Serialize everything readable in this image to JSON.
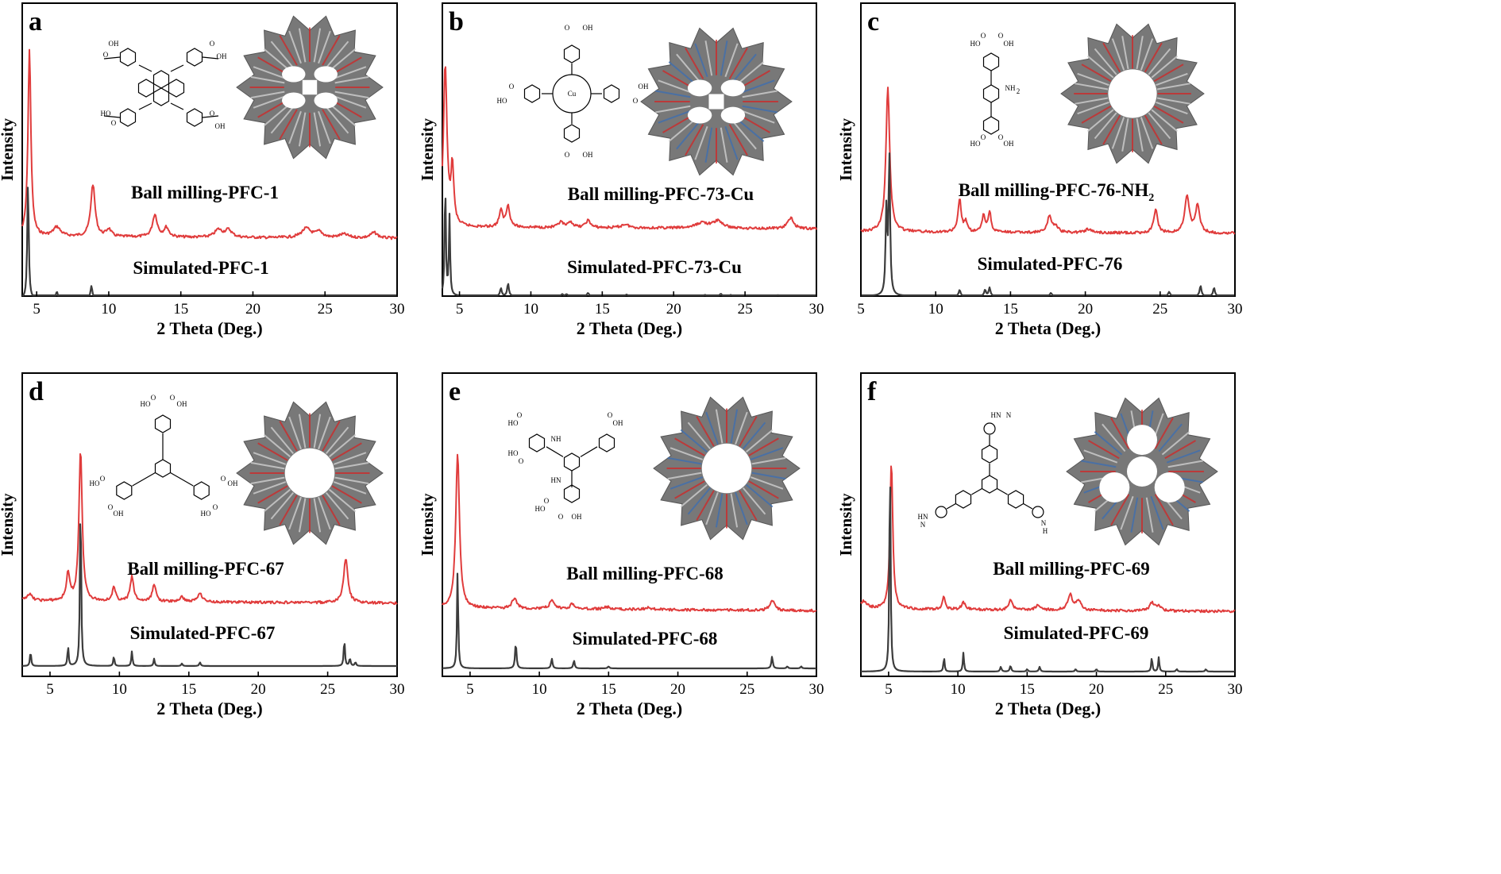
{
  "chart_data": [
    {
      "type": "line",
      "panel_letter": "a",
      "xlabel": "2 Theta (Deg.)",
      "ylabel": "Intensity",
      "xlim": [
        4,
        30
      ],
      "xticks": [
        "5",
        "10",
        "15",
        "20",
        "25",
        "30"
      ],
      "xtick_values": [
        5,
        10,
        15,
        20,
        25,
        30
      ],
      "series": [
        {
          "name": "Ball milling-PFC-1",
          "color": "#e03c3c",
          "baseline": 0.32,
          "peaks": [
            [
              4.5,
              1.0,
              0.12
            ],
            [
              6.4,
              0.05,
              0.3
            ],
            [
              8.9,
              0.28,
              0.18
            ],
            [
              10.0,
              0.04,
              0.2
            ],
            [
              13.2,
              0.12,
              0.2
            ],
            [
              14.0,
              0.05,
              0.2
            ],
            [
              17.6,
              0.04,
              0.3
            ],
            [
              18.3,
              0.04,
              0.3
            ],
            [
              23.7,
              0.05,
              0.4
            ],
            [
              24.6,
              0.03,
              0.3
            ],
            [
              26.3,
              0.02,
              0.4
            ],
            [
              28.4,
              0.03,
              0.3
            ]
          ]
        },
        {
          "name": "Simulated-PFC-1",
          "color": "#3c3c3c",
          "baseline": 0.0,
          "peaks": [
            [
              4.4,
              0.62,
              0.06
            ],
            [
              6.4,
              0.04,
              0.08
            ],
            [
              8.8,
              0.07,
              0.08
            ],
            [
              10.1,
              0.02,
              0.08
            ],
            [
              13.2,
              0.015,
              0.08
            ],
            [
              14.0,
              0.01,
              0.08
            ],
            [
              24.1,
              0.01,
              0.08
            ],
            [
              24.9,
              0.008,
              0.08
            ],
            [
              28.4,
              0.008,
              0.08
            ]
          ]
        }
      ],
      "labels": [
        "Ball milling-PFC-1",
        "Simulated-PFC-1"
      ]
    },
    {
      "type": "line",
      "panel_letter": "b",
      "xlabel": "2 Theta (Deg.)",
      "ylabel": "Intensity",
      "xlim": [
        3.8,
        30
      ],
      "xticks": [
        "5",
        "10",
        "15",
        "20",
        "25",
        "30"
      ],
      "xtick_values": [
        5,
        10,
        15,
        20,
        25,
        30
      ],
      "series": [
        {
          "name": "Ball milling-PFC-73-Cu",
          "color": "#e03c3c",
          "baseline": 0.37,
          "peaks": [
            [
              4.0,
              0.9,
              0.15
            ],
            [
              4.5,
              0.32,
              0.12
            ],
            [
              7.9,
              0.09,
              0.15
            ],
            [
              8.4,
              0.12,
              0.15
            ],
            [
              12.1,
              0.03,
              0.2
            ],
            [
              12.8,
              0.03,
              0.2
            ],
            [
              14.0,
              0.04,
              0.2
            ],
            [
              16.6,
              0.02,
              0.3
            ],
            [
              22.0,
              0.03,
              0.5
            ],
            [
              23.1,
              0.04,
              0.4
            ],
            [
              28.2,
              0.06,
              0.25
            ]
          ]
        },
        {
          "name": "Simulated-PFC-73-Cu",
          "color": "#3c3c3c",
          "baseline": 0.0,
          "peaks": [
            [
              4.0,
              0.72,
              0.05
            ],
            [
              4.3,
              0.5,
              0.05
            ],
            [
              7.9,
              0.05,
              0.07
            ],
            [
              8.4,
              0.08,
              0.07
            ],
            [
              12.2,
              0.012,
              0.08
            ],
            [
              12.5,
              0.012,
              0.08
            ],
            [
              14.0,
              0.02,
              0.08
            ],
            [
              16.7,
              0.01,
              0.08
            ],
            [
              22.2,
              0.008,
              0.08
            ],
            [
              23.3,
              0.015,
              0.08
            ],
            [
              24.0,
              0.008,
              0.08
            ],
            [
              27.3,
              0.006,
              0.08
            ]
          ]
        }
      ],
      "labels": [
        "Ball milling-PFC-73-Cu",
        "Simulated-PFC-73-Cu"
      ]
    },
    {
      "type": "line",
      "panel_letter": "c",
      "xlabel": "2 Theta (Deg.)",
      "ylabel": "Intensity",
      "xlim": [
        5,
        30
      ],
      "xticks": [
        "5",
        "10",
        "15",
        "20",
        "25",
        "30"
      ],
      "xtick_values": [
        5,
        10,
        15,
        20,
        25,
        30
      ],
      "series": [
        {
          "name": "Ball milling-PFC-76-NH2",
          "color": "#e03c3c",
          "baseline": 0.3,
          "peaks": [
            [
              6.8,
              0.87,
              0.15
            ],
            [
              11.6,
              0.2,
              0.12
            ],
            [
              12.0,
              0.06,
              0.12
            ],
            [
              13.2,
              0.1,
              0.12
            ],
            [
              13.6,
              0.12,
              0.12
            ],
            [
              17.6,
              0.1,
              0.15
            ],
            [
              18.0,
              0.04,
              0.2
            ],
            [
              20.2,
              0.02,
              0.3
            ],
            [
              24.7,
              0.14,
              0.15
            ],
            [
              26.8,
              0.22,
              0.18
            ],
            [
              27.5,
              0.16,
              0.18
            ]
          ]
        },
        {
          "name": "Simulated-PFC-76",
          "color": "#3c3c3c",
          "baseline": 0.0,
          "peaks": [
            [
              6.7,
              0.4,
              0.06
            ],
            [
              6.9,
              0.67,
              0.06
            ],
            [
              11.6,
              0.03,
              0.07
            ],
            [
              13.3,
              0.03,
              0.07
            ],
            [
              13.6,
              0.04,
              0.07
            ],
            [
              17.7,
              0.015,
              0.08
            ],
            [
              25.6,
              0.02,
              0.08
            ],
            [
              27.7,
              0.05,
              0.07
            ],
            [
              28.6,
              0.04,
              0.07
            ]
          ]
        }
      ],
      "labels": [
        "Ball milling-PFC-76-NH",
        "2",
        "Simulated-PFC-76"
      ]
    },
    {
      "type": "line",
      "panel_letter": "d",
      "xlabel": "2 Theta (Deg.)",
      "ylabel": "Intensity",
      "xlim": [
        3,
        30
      ],
      "xticks": [
        "5",
        "10",
        "15",
        "20",
        "25",
        "30"
      ],
      "xtick_values": [
        5,
        10,
        15,
        20,
        25,
        30
      ],
      "series": [
        {
          "name": "Ball milling-PFC-67",
          "color": "#e03c3c",
          "baseline": 0.3,
          "peaks": [
            [
              3.5,
              0.03,
              0.25
            ],
            [
              6.3,
              0.12,
              0.15
            ],
            [
              7.2,
              0.68,
              0.14
            ],
            [
              9.6,
              0.06,
              0.15
            ],
            [
              10.9,
              0.11,
              0.15
            ],
            [
              12.5,
              0.08,
              0.15
            ],
            [
              14.5,
              0.02,
              0.2
            ],
            [
              15.8,
              0.04,
              0.2
            ],
            [
              26.3,
              0.2,
              0.18
            ]
          ]
        },
        {
          "name": "Simulated-PFC-67",
          "color": "#3c3c3c",
          "baseline": 0.0,
          "peaks": [
            [
              3.6,
              0.06,
              0.05
            ],
            [
              6.3,
              0.08,
              0.05
            ],
            [
              7.2,
              0.71,
              0.05
            ],
            [
              9.6,
              0.04,
              0.05
            ],
            [
              10.9,
              0.06,
              0.05
            ],
            [
              12.5,
              0.03,
              0.05
            ],
            [
              14.5,
              0.01,
              0.06
            ],
            [
              15.8,
              0.015,
              0.06
            ],
            [
              26.2,
              0.11,
              0.05
            ],
            [
              26.6,
              0.03,
              0.06
            ],
            [
              27.0,
              0.015,
              0.06
            ]
          ]
        }
      ],
      "labels": [
        "Ball milling-PFC-67",
        "Simulated-PFC-67"
      ]
    },
    {
      "type": "line",
      "panel_letter": "e",
      "xlabel": "2 Theta (Deg.)",
      "ylabel": "Intensity",
      "xlim": [
        3,
        30
      ],
      "xticks": [
        "5",
        "10",
        "15",
        "20",
        "25",
        "30"
      ],
      "xtick_values": [
        5,
        10,
        15,
        20,
        25,
        30
      ],
      "series": [
        {
          "name": "Ball milling-PFC-68",
          "color": "#e03c3c",
          "baseline": 0.28,
          "peaks": [
            [
              4.1,
              0.6,
              0.16
            ],
            [
              8.2,
              0.04,
              0.2
            ],
            [
              10.9,
              0.03,
              0.2
            ],
            [
              12.4,
              0.02,
              0.2
            ],
            [
              14.9,
              0.008,
              0.3
            ],
            [
              17.9,
              0.006,
              0.3
            ],
            [
              26.8,
              0.04,
              0.2
            ]
          ]
        },
        {
          "name": "Simulated-PFC-68",
          "color": "#3c3c3c",
          "baseline": 0.0,
          "peaks": [
            [
              4.1,
              0.5,
              0.05
            ],
            [
              8.3,
              0.13,
              0.06
            ],
            [
              10.9,
              0.05,
              0.06
            ],
            [
              12.5,
              0.04,
              0.06
            ],
            [
              15.0,
              0.01,
              0.07
            ],
            [
              26.8,
              0.06,
              0.06
            ],
            [
              27.9,
              0.01,
              0.06
            ],
            [
              28.9,
              0.01,
              0.06
            ]
          ]
        }
      ],
      "labels": [
        "Ball milling-PFC-68",
        "Simulated-PFC-68"
      ]
    },
    {
      "type": "line",
      "panel_letter": "f",
      "xlabel": "2 Theta (Deg.)",
      "ylabel": "Intensity",
      "xlim": [
        3,
        30
      ],
      "xticks": [
        "5",
        "10",
        "15",
        "20",
        "25",
        "30"
      ],
      "xtick_values": [
        5,
        10,
        15,
        20,
        25,
        30
      ],
      "series": [
        {
          "name": "Ball milling-PFC-69",
          "color": "#e03c3c",
          "baseline": 0.3,
          "peaks": [
            [
              3.2,
              0.03,
              0.3
            ],
            [
              5.2,
              0.58,
              0.12
            ],
            [
              9.0,
              0.05,
              0.12
            ],
            [
              10.4,
              0.03,
              0.15
            ],
            [
              13.8,
              0.04,
              0.15
            ],
            [
              15.8,
              0.02,
              0.2
            ],
            [
              18.1,
              0.06,
              0.2
            ],
            [
              18.7,
              0.04,
              0.2
            ],
            [
              24.0,
              0.03,
              0.2
            ],
            [
              24.5,
              0.02,
              0.2
            ]
          ]
        },
        {
          "name": "Simulated-PFC-69",
          "color": "#3c3c3c",
          "baseline": 0.0,
          "peaks": [
            [
              5.1,
              0.91,
              0.05
            ],
            [
              9.0,
              0.06,
              0.05
            ],
            [
              10.4,
              0.08,
              0.05
            ],
            [
              13.1,
              0.02,
              0.06
            ],
            [
              13.8,
              0.025,
              0.06
            ],
            [
              15.0,
              0.01,
              0.06
            ],
            [
              15.9,
              0.02,
              0.06
            ],
            [
              18.5,
              0.01,
              0.06
            ],
            [
              20.0,
              0.01,
              0.06
            ],
            [
              24.0,
              0.06,
              0.05
            ],
            [
              24.5,
              0.06,
              0.05
            ],
            [
              25.8,
              0.01,
              0.06
            ],
            [
              27.9,
              0.01,
              0.06
            ]
          ]
        }
      ],
      "labels": [
        "Ball milling-PFC-69",
        "Simulated-PFC-69"
      ]
    }
  ],
  "molecule_labels": {
    "a": [
      "OH",
      "O",
      "O",
      "OH",
      "HO",
      "O",
      "O",
      "OH"
    ],
    "b": [
      "OH",
      "O",
      "HO",
      "O",
      "Cu",
      "O",
      "OH",
      "O",
      "OH"
    ],
    "c": [
      "HO",
      "O",
      "O",
      "OH",
      "NH",
      "2",
      "HO",
      "O",
      "O",
      "OH"
    ],
    "d": [
      "HO",
      "O",
      "O",
      "OH",
      "HO",
      "O",
      "O",
      "OH",
      "HO",
      "O",
      "O",
      "OH"
    ],
    "e": [
      "HO",
      "O",
      "NH",
      "O",
      "OH",
      "HO",
      "O",
      "HN",
      "O",
      "OH",
      "HO",
      "O"
    ],
    "f": [
      "HN",
      "N",
      "HN",
      "N",
      "N",
      "H"
    ]
  }
}
